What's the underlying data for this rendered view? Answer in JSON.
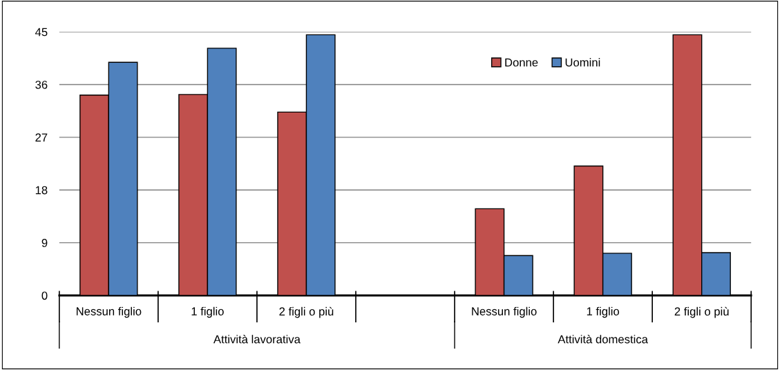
{
  "chart_data": {
    "type": "bar",
    "categories": [
      "Nessun figlio",
      "1 figlio",
      "2 figli o più",
      null,
      "Nessun figlio",
      "1 figlio",
      "2 figli o più"
    ],
    "series": [
      {
        "name": "Donne",
        "color": "#c0504d",
        "values": [
          34.2,
          34.3,
          31.3,
          null,
          14.8,
          22.1,
          44.5
        ]
      },
      {
        "name": "Uomini",
        "color": "#4f81bd",
        "values": [
          39.8,
          42.2,
          44.5,
          null,
          6.8,
          7.2,
          7.3
        ]
      }
    ],
    "annotations": [
      "Attività lavorativa",
      "Attività domestica"
    ],
    "ylim": [
      0,
      45
    ],
    "yticks": [
      0,
      9,
      18,
      27,
      36,
      45
    ],
    "grid": "y",
    "legend": "top right"
  }
}
